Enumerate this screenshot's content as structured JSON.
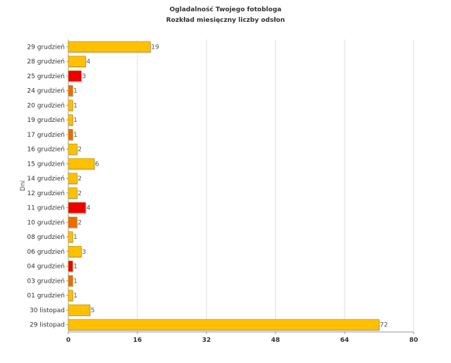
{
  "chart_data": {
    "type": "bar",
    "orientation": "horizontal",
    "title": "Ogladalność Twojego fotobloga",
    "subtitle": "Rozkład miesięczny liczby odsłon",
    "xlabel": "",
    "ylabel": "Dni",
    "xlim": [
      0,
      80
    ],
    "xticks": [
      0,
      16,
      32,
      48,
      64,
      80
    ],
    "grid": true,
    "legend": "none",
    "categories": [
      "29 grudzień",
      "28 grudzień",
      "25 grudzień",
      "24 grudzień",
      "20 grudzień",
      "19 grudzień",
      "17 grudzień",
      "16 grudzień",
      "15 grudzień",
      "14 grudzień",
      "12 grudzień",
      "11 grudzień",
      "10 grudzień",
      "08 grudzień",
      "06 grudzień",
      "04 grudzień",
      "03 grudzień",
      "01 grudzień",
      "30 listopad",
      "29 listopad"
    ],
    "values": [
      19,
      4,
      3,
      1,
      1,
      1,
      1,
      2,
      6,
      2,
      2,
      4,
      2,
      1,
      3,
      1,
      1,
      1,
      5,
      72
    ],
    "bar_colors": [
      "#ffc000",
      "#ffc000",
      "#ee0000",
      "#ee6a00",
      "#ffc000",
      "#ffc000",
      "#ee6a00",
      "#ffc000",
      "#ffc000",
      "#ffc000",
      "#ffc000",
      "#ee0000",
      "#ee6a00",
      "#ffc000",
      "#ffc000",
      "#ee0000",
      "#ee6a00",
      "#ffc000",
      "#ffc000",
      "#ffc000"
    ]
  }
}
